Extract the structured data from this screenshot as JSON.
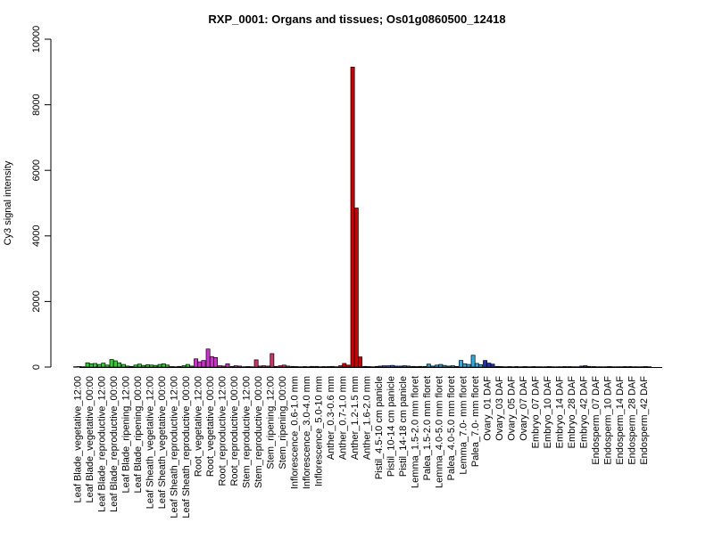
{
  "chart_data": {
    "type": "bar",
    "title": "RXP_0001: Organs and tissues; Os01g0860500_12418",
    "xlabel": "",
    "ylabel": "Cy3 signal intensity",
    "ylim": [
      0,
      10000
    ],
    "yticks": [
      0,
      2000,
      4000,
      6000,
      8000,
      10000
    ],
    "grid": false,
    "groups": [
      {
        "label": "Leaf Blade_vegetative_12:00",
        "color": "#333333",
        "values": [
          10,
          15,
          10
        ]
      },
      {
        "label": "Leaf Blade_vegetative_00:00",
        "color": "#33cc33",
        "values": [
          130,
          100,
          110
        ]
      },
      {
        "label": "Leaf Blade_reproductive_12:00",
        "color": "#33cc33",
        "values": [
          80,
          120,
          60
        ]
      },
      {
        "label": "Leaf Blade_reproductive_00:00",
        "color": "#33cc33",
        "values": [
          230,
          190,
          130
        ]
      },
      {
        "label": "Leaf Blade_ripening_12:00",
        "color": "#33cc33",
        "values": [
          80,
          30,
          20
        ]
      },
      {
        "label": "Leaf Blade_ripening_00:00",
        "color": "#33cc33",
        "values": [
          60,
          90,
          50
        ]
      },
      {
        "label": "Leaf Sheath_vegetative_12:00",
        "color": "#33cc33",
        "values": [
          70,
          60,
          50
        ]
      },
      {
        "label": "Leaf Sheath_vegetative_00:00",
        "color": "#33cc33",
        "values": [
          80,
          100,
          60
        ]
      },
      {
        "label": "Leaf Sheath_reproductive_12:00",
        "color": "#33cc33",
        "values": [
          15,
          10,
          20
        ]
      },
      {
        "label": "Leaf Sheath_reproductive_00:00",
        "color": "#33cc33",
        "values": [
          40,
          80,
          30
        ]
      },
      {
        "label": "Root_vegetative_12:00",
        "color": "#cc33cc",
        "values": [
          250,
          160,
          200
        ]
      },
      {
        "label": "Root_vegetative_00:00",
        "color": "#cc33cc",
        "values": [
          550,
          320,
          290
        ]
      },
      {
        "label": "Root_reproductive_12:00",
        "color": "#cc33cc",
        "values": [
          40,
          30,
          100
        ]
      },
      {
        "label": "Root_reproductive_00:00",
        "color": "#cc33cc",
        "values": [
          20,
          40,
          30
        ]
      },
      {
        "label": "Stem_reproductive_12:00",
        "color": "#cc3366",
        "values": [
          10,
          15,
          10
        ]
      },
      {
        "label": "Stem_reproductive_00:00",
        "color": "#cc3366",
        "values": [
          220,
          30,
          40
        ]
      },
      {
        "label": "Stem_ripening_12:00",
        "color": "#cc3366",
        "values": [
          30,
          410,
          20
        ]
      },
      {
        "label": "Stem_ripening_00:00",
        "color": "#cc3366",
        "values": [
          40,
          60,
          30
        ]
      },
      {
        "label": "Inflorescence_0.6-1.0 mm",
        "color": "#cc3333",
        "values": [
          20,
          15,
          10
        ]
      },
      {
        "label": "Inflorescence_3.0-4.0 mm",
        "color": "#cc3333",
        "values": [
          15,
          10,
          20
        ]
      },
      {
        "label": "Inflorescence_5.0-10 mm",
        "color": "#cc3333",
        "values": [
          20,
          10,
          15
        ]
      },
      {
        "label": "Anther_0.3-0.6 mm",
        "color": "#cc3333",
        "values": [
          15,
          20,
          10
        ]
      },
      {
        "label": "Anther_0.7-1.0 mm",
        "color": "#cc0000",
        "values": [
          40,
          110,
          60
        ]
      },
      {
        "label": "Anther_1.2-1.5 mm",
        "color": "#cc0000",
        "values": [
          9150,
          4850,
          310
        ]
      },
      {
        "label": "Anther_1.6-2.0 mm",
        "color": "#cc0000",
        "values": [
          20,
          15,
          10
        ]
      },
      {
        "label": "Pistil_4.5-10 cm panicle",
        "color": "#3366cc",
        "values": [
          20,
          30,
          40
        ]
      },
      {
        "label": "Pistil_10-14 cm panicle",
        "color": "#3366cc",
        "values": [
          40,
          50,
          30
        ]
      },
      {
        "label": "Pistil_14-18 cm panicle",
        "color": "#3366cc",
        "values": [
          30,
          40,
          30
        ]
      },
      {
        "label": "Lemma_1.5-2.0 mm floret",
        "color": "#3399cc",
        "values": [
          20,
          15,
          20
        ]
      },
      {
        "label": "Palea_1.5-2.0 mm floret",
        "color": "#3399cc",
        "values": [
          20,
          90,
          30
        ]
      },
      {
        "label": "Lemma_4.0-5.0 mm floret",
        "color": "#3399cc",
        "values": [
          60,
          80,
          50
        ]
      },
      {
        "label": "Palea_4.0-5.0 mm floret",
        "color": "#3399cc",
        "values": [
          30,
          40,
          20
        ]
      },
      {
        "label": "Lemma_7.0- mm floret",
        "color": "#33aadd",
        "values": [
          200,
          100,
          80
        ]
      },
      {
        "label": "Palea_7.0- mm floret",
        "color": "#33aadd",
        "values": [
          360,
          110,
          70
        ]
      },
      {
        "label": "Ovary_01 DAF",
        "color": "#2233aa",
        "values": [
          200,
          120,
          90
        ]
      },
      {
        "label": "Ovary_03 DAF",
        "color": "#2233aa",
        "values": [
          20,
          15,
          10
        ]
      },
      {
        "label": "Ovary_05 DAF",
        "color": "#2233aa",
        "values": [
          15,
          10,
          15
        ]
      },
      {
        "label": "Ovary_07 DAF",
        "color": "#2233aa",
        "values": [
          10,
          15,
          10
        ]
      },
      {
        "label": "Embryo_07 DAF",
        "color": "#2233aa",
        "values": [
          15,
          10,
          10
        ]
      },
      {
        "label": "Embryo_10 DAF",
        "color": "#2233aa",
        "values": [
          10,
          15,
          10
        ]
      },
      {
        "label": "Embryo_14 DAF",
        "color": "#2233aa",
        "values": [
          10,
          10,
          15
        ]
      },
      {
        "label": "Embryo_28 DAF",
        "color": "#2233aa",
        "values": [
          15,
          10,
          10
        ]
      },
      {
        "label": "Embryo_42 DAF",
        "color": "#2233aa",
        "values": [
          30,
          40,
          20
        ]
      },
      {
        "label": "Endosperm_07 DAF",
        "color": "#2233aa",
        "values": [
          15,
          10,
          10
        ]
      },
      {
        "label": "Endosperm_10 DAF",
        "color": "#2233aa",
        "values": [
          10,
          15,
          10
        ]
      },
      {
        "label": "Endosperm_14 DAF",
        "color": "#2233aa",
        "values": [
          10,
          10,
          15
        ]
      },
      {
        "label": "Endosperm_28 DAF",
        "color": "#2233aa",
        "values": [
          15,
          10,
          10
        ]
      },
      {
        "label": "Endosperm_42 DAF",
        "color": "#2233aa",
        "values": [
          10,
          15,
          10
        ]
      }
    ]
  }
}
